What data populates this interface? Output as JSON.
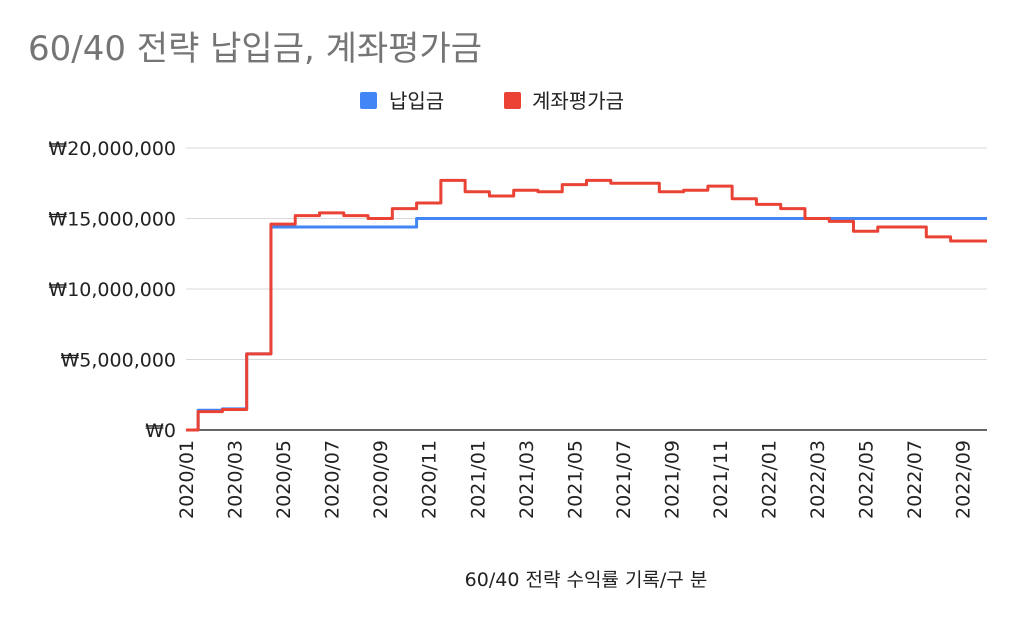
{
  "chart_data": {
    "type": "line",
    "step": true,
    "title": "60/40 전략 납입금, 계좌평가금",
    "xlabel": "60/40 전략 수익률 기록/구 분",
    "ylabel": "",
    "ylim": [
      0,
      20000000
    ],
    "y_ticks": [
      0,
      5000000,
      10000000,
      15000000,
      20000000
    ],
    "y_tick_labels": [
      "₩0",
      "₩5,000,000",
      "₩10,000,000",
      "₩15,000,000",
      "₩20,000,000"
    ],
    "x_tick_labels": [
      "2020/01",
      "2020/03",
      "2020/05",
      "2020/07",
      "2020/09",
      "2020/11",
      "2021/01",
      "2021/03",
      "2021/05",
      "2021/07",
      "2021/09",
      "2021/11",
      "2022/01",
      "2022/03",
      "2022/05",
      "2022/07",
      "2022/09"
    ],
    "categories": [
      "2020/01",
      "2020/02",
      "2020/03",
      "2020/04",
      "2020/05",
      "2020/06",
      "2020/07",
      "2020/08",
      "2020/09",
      "2020/10",
      "2020/11",
      "2020/12",
      "2021/01",
      "2021/02",
      "2021/03",
      "2021/04",
      "2021/05",
      "2021/06",
      "2021/07",
      "2021/08",
      "2021/09",
      "2021/10",
      "2021/11",
      "2021/12",
      "2022/01",
      "2022/02",
      "2022/03",
      "2022/04",
      "2022/05",
      "2022/06",
      "2022/07",
      "2022/08",
      "2022/09",
      "2022/10"
    ],
    "legend_position": "top",
    "grid": true,
    "series": [
      {
        "name": "납입금",
        "color": "#4285f4",
        "values": [
          0,
          1400000,
          1500000,
          5400000,
          14400000,
          14400000,
          14400000,
          14400000,
          14400000,
          14400000,
          15000000,
          15000000,
          15000000,
          15000000,
          15000000,
          15000000,
          15000000,
          15000000,
          15000000,
          15000000,
          15000000,
          15000000,
          15000000,
          15000000,
          15000000,
          15000000,
          15000000,
          15000000,
          15000000,
          15000000,
          15000000,
          15000000,
          15000000,
          15000000
        ]
      },
      {
        "name": "계좌평가금",
        "color": "#ea4335",
        "values": [
          0,
          1300000,
          1450000,
          5400000,
          14600000,
          15200000,
          15400000,
          15200000,
          15000000,
          15700000,
          16100000,
          17700000,
          16900000,
          16600000,
          17000000,
          16900000,
          17400000,
          17700000,
          17500000,
          17500000,
          16900000,
          17000000,
          17300000,
          16400000,
          16000000,
          15700000,
          15000000,
          14800000,
          14100000,
          14400000,
          14400000,
          13700000,
          13400000,
          13400000
        ]
      }
    ]
  }
}
